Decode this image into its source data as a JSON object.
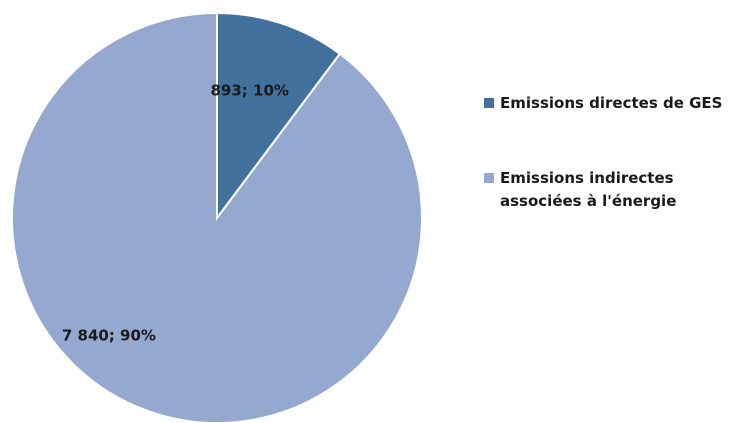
{
  "chart_data": {
    "type": "pie",
    "title": "",
    "slices": [
      {
        "name": "Emissions directes de GES",
        "value": 893,
        "percent": 10,
        "label": "893; 10%",
        "color": "#41719c"
      },
      {
        "name": "Emissions indirectes associées à l'énergie",
        "value": 7840,
        "percent": 90,
        "label": "7 840; 90%",
        "color": "#95a9d0"
      }
    ],
    "start_angle_deg": 0,
    "direction": "clockwise",
    "legend_position": "right"
  }
}
